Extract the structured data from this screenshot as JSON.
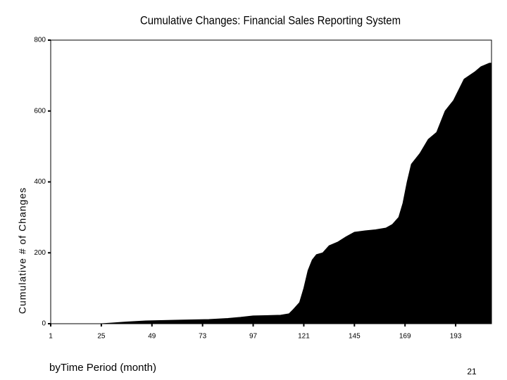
{
  "chart_data": {
    "type": "area",
    "title": "Cumulative Changes: Financial Sales Reporting System",
    "x_label": "byTime Period (month)",
    "y_label": "Cumulative # of Changes",
    "x": [
      1,
      25,
      30,
      37,
      46,
      60,
      76,
      85,
      91,
      97,
      110,
      114,
      116,
      119,
      121,
      123,
      125,
      127,
      130,
      133,
      137,
      141,
      145,
      150,
      155,
      160,
      163,
      166,
      168,
      170,
      172,
      176,
      180,
      184,
      188,
      192,
      197,
      202,
      205,
      209
    ],
    "values": [
      0,
      0,
      2,
      5,
      8,
      10,
      12,
      15,
      18,
      22,
      24,
      28,
      40,
      60,
      100,
      150,
      180,
      195,
      200,
      220,
      230,
      245,
      258,
      262,
      265,
      270,
      280,
      300,
      340,
      400,
      450,
      480,
      520,
      540,
      600,
      630,
      690,
      710,
      725,
      735
    ],
    "color": "#000000",
    "xlim": [
      1,
      210
    ],
    "xticks": [
      1,
      25,
      49,
      73,
      97,
      121,
      145,
      169,
      193
    ],
    "ylim": [
      0,
      800
    ],
    "yticks": [
      0,
      200,
      400,
      600,
      800
    ]
  },
  "page_number": "21"
}
